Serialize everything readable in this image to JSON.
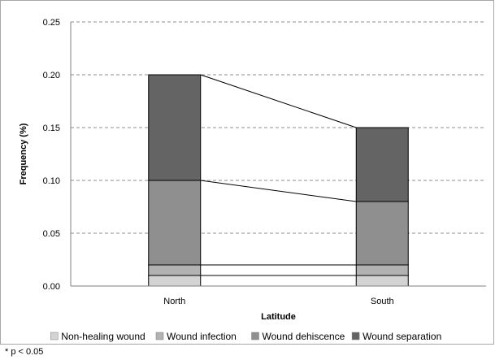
{
  "chart_data": {
    "type": "bar",
    "stacked": true,
    "categories": [
      "North",
      "South"
    ],
    "xlabel": "Latitude",
    "ylabel": "Frequency (%)",
    "ylim": [
      0,
      0.25
    ],
    "yticks": [
      "0.00",
      "0.05",
      "0.10",
      "0.15",
      "0.20",
      "0.25"
    ],
    "grid": "horizontal dashed",
    "legend_position": "bottom",
    "connector_lines": true,
    "series": [
      {
        "name": "Non-healing wound",
        "values": [
          0.01,
          0.01
        ],
        "color": "#d3d3d3"
      },
      {
        "name": "Wound infection",
        "values": [
          0.01,
          0.01
        ],
        "color": "#b2b2b2"
      },
      {
        "name": "Wound dehiscence",
        "values": [
          0.08,
          0.06
        ],
        "color": "#8f8f8f"
      },
      {
        "name": "Wound separation",
        "values": [
          0.1,
          0.07
        ],
        "color": "#646464"
      }
    ]
  },
  "footnote": "* p < 0.05"
}
